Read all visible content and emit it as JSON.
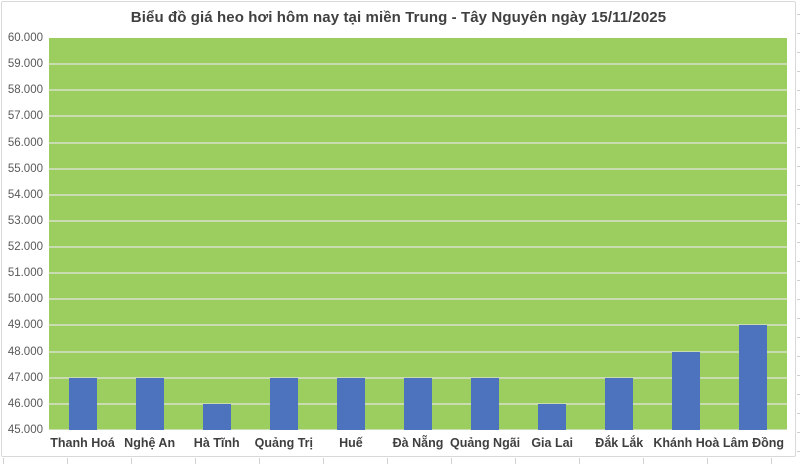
{
  "chart_data": {
    "type": "bar",
    "title": "Biểu đồ giá heo hơi hôm nay tại miền Trung - Tây Nguyên ngày 15/11/2025",
    "categories": [
      "Thanh Hoá",
      "Nghệ An",
      "Hà Tĩnh",
      "Quảng Trị",
      "Huế",
      "Đà Nẵng",
      "Quảng Ngãi",
      "Gia Lai",
      "Đắk Lắk",
      "Khánh Hoà",
      "Lâm Đồng"
    ],
    "values": [
      47000,
      47000,
      46000,
      47000,
      47000,
      47000,
      47000,
      46000,
      47000,
      48000,
      49000
    ],
    "xlabel": "",
    "ylabel": "",
    "ylim": [
      45000,
      60000
    ],
    "ytick_step": 1000,
    "ytick_labels": [
      "60.000",
      "59.000",
      "58.000",
      "57.000",
      "56.000",
      "55.000",
      "54.000",
      "53.000",
      "52.000",
      "51.000",
      "50.000",
      "49.000",
      "48.000",
      "47.000",
      "46.000",
      "45.000"
    ],
    "grid": true,
    "legend": "none",
    "colors": {
      "bar": "#4D73BF",
      "plot_background": "#9CCE5F",
      "gridline": "#C8DCAF",
      "title_text": "#404040",
      "ytick_text": "#595959",
      "xtick_text": "#3F3F3F",
      "chart_border": "#D9D9D9",
      "sheet_gridline": "#D0D0D0"
    }
  }
}
